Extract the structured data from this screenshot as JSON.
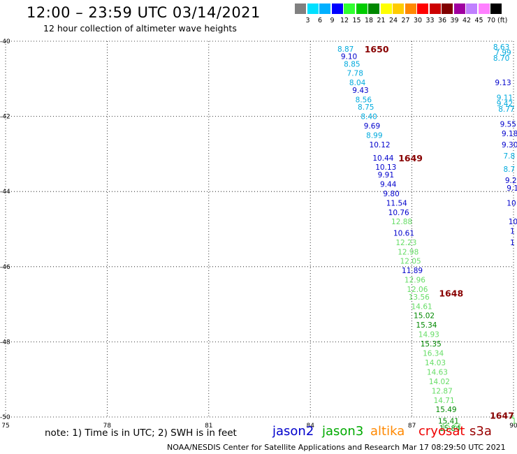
{
  "header": {
    "title": "12:00 – 23:59 UTC 03/14/2021",
    "subtitle": "12 hour collection of altimeter wave heights"
  },
  "colorscale": {
    "unit": "(ft)",
    "colors": [
      "#808080",
      "#00e0ff",
      "#00b0ff",
      "#0000ff",
      "#30ff30",
      "#00cc00",
      "#008800",
      "#ffff00",
      "#ffcc00",
      "#ff8800",
      "#ff0000",
      "#cc0000",
      "#800000",
      "#a000a0",
      "#c080ff",
      "#ff80ff",
      "#000000"
    ],
    "labels": [
      "3",
      "6",
      "9",
      "12",
      "15",
      "18",
      "21",
      "24",
      "27",
      "30",
      "33",
      "36",
      "39",
      "42",
      "45",
      "70"
    ]
  },
  "map": {
    "x_range": [
      75,
      90
    ],
    "y_range": [
      -50,
      -40
    ],
    "x_ticks": [
      {
        "v": 75,
        "t": "75"
      },
      {
        "v": 78,
        "t": "78"
      },
      {
        "v": 81,
        "t": "81"
      },
      {
        "v": 84,
        "t": "84"
      },
      {
        "v": 87,
        "t": "87"
      },
      {
        "v": 90,
        "t": "90"
      }
    ],
    "y_ticks": [
      {
        "v": -40,
        "t": "-40"
      },
      {
        "v": -42,
        "t": "-42"
      },
      {
        "v": -44,
        "t": "-44"
      },
      {
        "v": -46,
        "t": "-46"
      },
      {
        "v": -48,
        "t": "-48"
      },
      {
        "v": -50,
        "t": "-50"
      }
    ]
  },
  "pass_times": [
    {
      "text": "1650",
      "lon": 85.6,
      "lat": -40.2
    },
    {
      "text": "1649",
      "lon": 86.6,
      "lat": -43.1
    },
    {
      "text": "1648",
      "lon": 87.8,
      "lat": -46.7
    },
    {
      "text": "1647",
      "lon": 89.3,
      "lat": -49.95
    }
  ],
  "wave_heights": [
    {
      "text": "8.87",
      "lon": 84.8,
      "lat": -40.2,
      "color": "#00aadd"
    },
    {
      "text": "9.10",
      "lon": 84.9,
      "lat": -40.4,
      "color": "#0000cc"
    },
    {
      "text": "8.85",
      "lon": 84.99,
      "lat": -40.6,
      "color": "#00aadd"
    },
    {
      "text": "7.78",
      "lon": 85.08,
      "lat": -40.85,
      "color": "#00aadd"
    },
    {
      "text": "8.04",
      "lon": 85.15,
      "lat": -41.1,
      "color": "#00aadd"
    },
    {
      "text": "9.43",
      "lon": 85.24,
      "lat": -41.3,
      "color": "#0000cc"
    },
    {
      "text": "8.56",
      "lon": 85.33,
      "lat": -41.55,
      "color": "#00aadd"
    },
    {
      "text": "8.75",
      "lon": 85.4,
      "lat": -41.75,
      "color": "#00aadd"
    },
    {
      "text": "8.40",
      "lon": 85.49,
      "lat": -42.0,
      "color": "#00aadd"
    },
    {
      "text": "9.69",
      "lon": 85.58,
      "lat": -42.25,
      "color": "#0000cc"
    },
    {
      "text": "8.99",
      "lon": 85.65,
      "lat": -42.5,
      "color": "#00aadd"
    },
    {
      "text": "10.12",
      "lon": 85.74,
      "lat": -42.75,
      "color": "#0000cc"
    },
    {
      "text": "10.44",
      "lon": 85.84,
      "lat": -43.1,
      "color": "#0000cc"
    },
    {
      "text": "10.13",
      "lon": 85.92,
      "lat": -43.35,
      "color": "#0000cc"
    },
    {
      "text": "9.91",
      "lon": 85.99,
      "lat": -43.55,
      "color": "#0000cc"
    },
    {
      "text": "9.44",
      "lon": 86.06,
      "lat": -43.8,
      "color": "#0000cc"
    },
    {
      "text": "9.80",
      "lon": 86.15,
      "lat": -44.05,
      "color": "#0000cc"
    },
    {
      "text": "11.54",
      "lon": 86.24,
      "lat": -44.3,
      "color": "#0000cc"
    },
    {
      "text": "10.76",
      "lon": 86.3,
      "lat": -44.55,
      "color": "#0000cc"
    },
    {
      "text": "12.88",
      "lon": 86.39,
      "lat": -44.8,
      "color": "#66dd66"
    },
    {
      "text": "10.61",
      "lon": 86.45,
      "lat": -45.1,
      "color": "#0000cc"
    },
    {
      "text": "12.23",
      "lon": 86.52,
      "lat": -45.35,
      "color": "#66dd66"
    },
    {
      "text": "12.98",
      "lon": 86.58,
      "lat": -45.6,
      "color": "#66dd66"
    },
    {
      "text": "12.05",
      "lon": 86.65,
      "lat": -45.85,
      "color": "#66dd66"
    },
    {
      "text": "11.89",
      "lon": 86.7,
      "lat": -46.1,
      "color": "#0000cc"
    },
    {
      "text": "12.96",
      "lon": 86.78,
      "lat": -46.35,
      "color": "#66dd66"
    },
    {
      "text": "12.06",
      "lon": 86.85,
      "lat": -46.6,
      "color": "#66dd66"
    },
    {
      "text": "13.56",
      "lon": 86.9,
      "lat": -46.8,
      "color": "#66dd66"
    },
    {
      "text": "14.61",
      "lon": 86.98,
      "lat": -47.05,
      "color": "#66dd66"
    },
    {
      "text": "15.02",
      "lon": 87.05,
      "lat": -47.3,
      "color": "#008800"
    },
    {
      "text": "15.34",
      "lon": 87.12,
      "lat": -47.55,
      "color": "#008800"
    },
    {
      "text": "14.93",
      "lon": 87.19,
      "lat": -47.8,
      "color": "#66dd66"
    },
    {
      "text": "15.35",
      "lon": 87.25,
      "lat": -48.05,
      "color": "#008800"
    },
    {
      "text": "16.34",
      "lon": 87.32,
      "lat": -48.3,
      "color": "#66dd66"
    },
    {
      "text": "14.03",
      "lon": 87.38,
      "lat": -48.55,
      "color": "#66dd66"
    },
    {
      "text": "14.63",
      "lon": 87.44,
      "lat": -48.8,
      "color": "#66dd66"
    },
    {
      "text": "14.02",
      "lon": 87.5,
      "lat": -49.05,
      "color": "#66dd66"
    },
    {
      "text": "12.87",
      "lon": 87.58,
      "lat": -49.3,
      "color": "#66dd66"
    },
    {
      "text": "14.71",
      "lon": 87.64,
      "lat": -49.55,
      "color": "#66dd66"
    },
    {
      "text": "15.49",
      "lon": 87.7,
      "lat": -49.8,
      "color": "#008800"
    },
    {
      "text": "15.41",
      "lon": 87.77,
      "lat": -50.1,
      "color": "#008800"
    },
    {
      "text": "15.84",
      "lon": 87.81,
      "lat": -50.3,
      "color": "#008800"
    },
    {
      "text": "15.61",
      "lon": 87.86,
      "lat": -50.25,
      "color": "#66dd66"
    },
    {
      "text": "8.63",
      "lon": 89.4,
      "lat": -40.15,
      "color": "#00aadd"
    },
    {
      "text": "7.99",
      "lon": 89.45,
      "lat": -40.3,
      "color": "#00aadd"
    },
    {
      "text": "8.70",
      "lon": 89.4,
      "lat": -40.45,
      "color": "#00aadd"
    },
    {
      "text": "9.13",
      "lon": 89.45,
      "lat": -41.1,
      "color": "#0000cc"
    },
    {
      "text": "9.11",
      "lon": 89.5,
      "lat": -41.5,
      "color": "#00aadd"
    },
    {
      "text": "9.42",
      "lon": 89.5,
      "lat": -41.65,
      "color": "#00aadd"
    },
    {
      "text": "8.77",
      "lon": 89.55,
      "lat": -41.8,
      "color": "#00aadd"
    },
    {
      "text": "9.55",
      "lon": 89.6,
      "lat": -42.2,
      "color": "#0000cc"
    },
    {
      "text": "9.18",
      "lon": 89.65,
      "lat": -42.45,
      "color": "#0000cc"
    },
    {
      "text": "9.30",
      "lon": 89.65,
      "lat": -42.75,
      "color": "#0000cc"
    },
    {
      "text": "7.8",
      "lon": 89.7,
      "lat": -43.05,
      "color": "#00aadd"
    },
    {
      "text": "8.7",
      "lon": 89.7,
      "lat": -43.4,
      "color": "#00aadd"
    },
    {
      "text": "9.2",
      "lon": 89.75,
      "lat": -43.7,
      "color": "#0000cc"
    },
    {
      "text": "9.1",
      "lon": 89.8,
      "lat": -43.9,
      "color": "#0000cc"
    },
    {
      "text": "10",
      "lon": 89.8,
      "lat": -44.3,
      "color": "#0000cc"
    },
    {
      "text": "10",
      "lon": 89.85,
      "lat": -44.8,
      "color": "#0000cc"
    },
    {
      "text": "1",
      "lon": 89.9,
      "lat": -45.05,
      "color": "#0000cc"
    },
    {
      "text": "1",
      "lon": 89.9,
      "lat": -45.35,
      "color": "#0000cc"
    },
    {
      "text": "1",
      "lon": 89.9,
      "lat": -49.95,
      "color": "#66dd66"
    },
    {
      "text": "1",
      "lon": 89.95,
      "lat": -50.1,
      "color": "#66dd66"
    }
  ],
  "note": "note: 1) Time is in UTC; 2) SWH is in feet",
  "satellites": [
    {
      "name": "jason2",
      "color": "#0000cc"
    },
    {
      "name": "jason3",
      "color": "#00aa00"
    },
    {
      "name": "altika",
      "color": "#ff8800"
    },
    {
      "name": "cryosat",
      "color": "#ee0000"
    },
    {
      "name": "s3a",
      "color": "#990000"
    }
  ],
  "footer": "NOAA/NESDIS Center for Satellite Applications and Research   Mar 17 08:29:50 UTC 2021"
}
